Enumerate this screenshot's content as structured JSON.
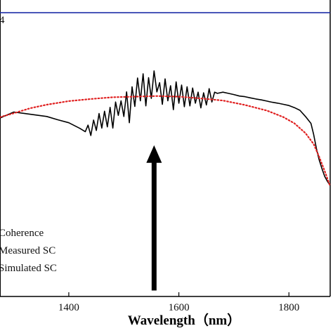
{
  "chart_data": {
    "type": "line",
    "xlabel": "Wavelength（nm）",
    "xlim": [
      1275,
      1875
    ],
    "ylim": [
      0,
      1
    ],
    "grid": false,
    "x_ticks": [
      {
        "value": 1400,
        "label": "1400"
      },
      {
        "value": 1600,
        "label": "1600"
      },
      {
        "value": 1800,
        "label": "1800"
      }
    ],
    "top_left_fragment": "4",
    "legend": {
      "placement": "bottom-left",
      "entries": [
        "Coherence",
        "Measured SC",
        "Simulated SC"
      ]
    },
    "colors": {
      "coherence": "#1f2ea8",
      "measured": "#000000",
      "simulated": "#e02020",
      "arrow": "#000000"
    },
    "arrow": {
      "x": 1555,
      "y_tail": 0.02,
      "y_head": 0.51
    },
    "series": [
      {
        "key": "coherence",
        "style": "solid",
        "x": [
          1275,
          1875
        ],
        "y": [
          0.957,
          0.957
        ]
      },
      {
        "key": "measured",
        "style": "solid",
        "x": [
          1275,
          1300,
          1320,
          1340,
          1360,
          1380,
          1400,
          1420,
          1430,
          1435,
          1440,
          1445,
          1450,
          1455,
          1460,
          1465,
          1470,
          1475,
          1480,
          1485,
          1490,
          1495,
          1500,
          1505,
          1510,
          1515,
          1520,
          1525,
          1530,
          1535,
          1540,
          1545,
          1550,
          1555,
          1560,
          1565,
          1570,
          1575,
          1580,
          1585,
          1590,
          1595,
          1600,
          1605,
          1610,
          1615,
          1620,
          1625,
          1630,
          1635,
          1640,
          1645,
          1650,
          1655,
          1660,
          1665,
          1670,
          1680,
          1690,
          1700,
          1710,
          1720,
          1730,
          1740,
          1750,
          1760,
          1770,
          1780,
          1790,
          1800,
          1810,
          1820,
          1830,
          1840,
          1845,
          1850,
          1855,
          1860,
          1865,
          1870,
          1875
        ],
        "y": [
          0.602,
          0.622,
          0.617,
          0.612,
          0.607,
          0.596,
          0.586,
          0.567,
          0.556,
          0.578,
          0.543,
          0.595,
          0.56,
          0.617,
          0.568,
          0.625,
          0.572,
          0.638,
          0.568,
          0.656,
          0.611,
          0.66,
          0.607,
          0.69,
          0.586,
          0.707,
          0.641,
          0.737,
          0.66,
          0.751,
          0.643,
          0.738,
          0.668,
          0.761,
          0.69,
          0.721,
          0.648,
          0.734,
          0.66,
          0.711,
          0.63,
          0.724,
          0.652,
          0.713,
          0.64,
          0.707,
          0.643,
          0.703,
          0.652,
          0.689,
          0.636,
          0.687,
          0.646,
          0.701,
          0.656,
          0.689,
          0.685,
          0.689,
          0.685,
          0.681,
          0.676,
          0.674,
          0.67,
          0.666,
          0.663,
          0.659,
          0.655,
          0.652,
          0.648,
          0.644,
          0.637,
          0.628,
          0.607,
          0.584,
          0.546,
          0.499,
          0.461,
          0.431,
          0.405,
          0.388,
          0.375
        ]
      },
      {
        "key": "simulated",
        "style": "dotted",
        "x": [
          1275,
          1300,
          1330,
          1360,
          1400,
          1440,
          1480,
          1520,
          1560,
          1600,
          1640,
          1680,
          1720,
          1760,
          1790,
          1810,
          1830,
          1845,
          1855,
          1865,
          1875
        ],
        "y": [
          0.605,
          0.618,
          0.635,
          0.647,
          0.659,
          0.666,
          0.672,
          0.674,
          0.676,
          0.674,
          0.668,
          0.661,
          0.646,
          0.627,
          0.605,
          0.584,
          0.551,
          0.514,
          0.471,
          0.423,
          0.371
        ]
      }
    ]
  }
}
